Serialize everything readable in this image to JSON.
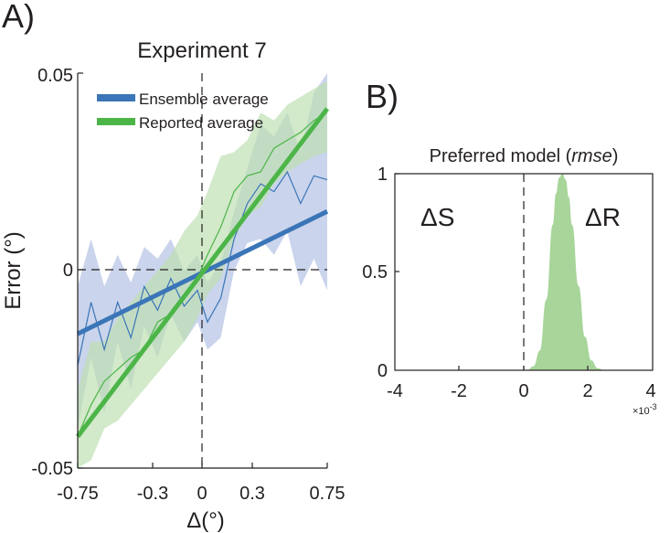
{
  "colors": {
    "ensemble": "#3a75b7",
    "ensemble_band": "#b8c6e6",
    "reported": "#4cb548",
    "reported_band": "#bfe0b4",
    "axis": "#231f20"
  },
  "panel_a": {
    "panel_label": "A)",
    "chart_data": {
      "type": "line",
      "title": "Experiment 7",
      "xlabel": "Δ(°)",
      "ylabel": "Error (°)",
      "xlim": [
        -0.75,
        0.75
      ],
      "ylim": [
        -0.05,
        0.05
      ],
      "xticks": [
        -0.75,
        -0.3,
        0,
        0.3,
        0.75
      ],
      "xtick_labels": [
        "-0.75",
        "-0.3",
        "0",
        "0.3",
        "0.75"
      ],
      "yticks": [
        -0.05,
        0,
        0.05
      ],
      "ytick_labels": [
        "-0.05",
        "0",
        "0.05"
      ],
      "legend_position": "top-left",
      "x": [
        -0.75,
        -0.67,
        -0.59,
        -0.51,
        -0.43,
        -0.35,
        -0.27,
        -0.19,
        -0.11,
        -0.03,
        0.03,
        0.11,
        0.19,
        0.27,
        0.35,
        0.43,
        0.51,
        0.59,
        0.67,
        0.75
      ],
      "series": [
        {
          "name": "Ensemble average",
          "data_line": [
            -0.024,
            -0.008,
            -0.02,
            -0.008,
            -0.017,
            -0.004,
            -0.01,
            -0.002,
            -0.009,
            -0.005,
            -0.013,
            -0.007,
            0.008,
            0.017,
            0.022,
            0.02,
            0.025,
            0.017,
            0.024,
            0.023
          ],
          "band_upper": [
            -0.004,
            0.008,
            -0.004,
            0.004,
            -0.003,
            0.006,
            0.003,
            0.008,
            0.0,
            0.004,
            -0.003,
            0.002,
            0.015,
            0.026,
            0.037,
            0.034,
            0.04,
            0.03,
            0.045,
            0.05
          ],
          "band_lower": [
            -0.04,
            -0.022,
            -0.036,
            -0.018,
            -0.03,
            -0.014,
            -0.022,
            -0.011,
            -0.018,
            -0.013,
            -0.02,
            -0.017,
            0.0,
            0.007,
            0.008,
            0.004,
            0.01,
            -0.004,
            0.003,
            -0.005
          ],
          "fit_line": {
            "x": [
              -0.75,
              0.75
            ],
            "y": [
              -0.016,
              0.015
            ]
          }
        },
        {
          "name": "Reported average",
          "data_line": [
            -0.042,
            -0.034,
            -0.028,
            -0.025,
            -0.022,
            -0.02,
            -0.013,
            -0.011,
            -0.007,
            -0.002,
            0.004,
            0.011,
            0.02,
            0.024,
            0.025,
            0.031,
            0.033,
            0.035,
            0.038,
            0.04
          ],
          "band_upper": [
            -0.03,
            -0.018,
            -0.018,
            -0.012,
            -0.008,
            -0.004,
            0.0,
            0.004,
            0.01,
            0.014,
            0.02,
            0.029,
            0.03,
            0.033,
            0.04,
            0.038,
            0.042,
            0.044,
            0.046,
            0.048
          ],
          "band_lower": [
            -0.05,
            -0.048,
            -0.04,
            -0.038,
            -0.034,
            -0.03,
            -0.026,
            -0.022,
            -0.018,
            -0.012,
            -0.006,
            -0.002,
            0.008,
            0.014,
            0.016,
            0.022,
            0.025,
            0.027,
            0.029,
            0.03
          ],
          "fit_line": {
            "x": [
              -0.75,
              0.75
            ],
            "y": [
              -0.042,
              0.041
            ]
          }
        }
      ]
    }
  },
  "panel_b": {
    "panel_label": "B)",
    "chart_data": {
      "type": "area",
      "title_prefix": "Preferred model (",
      "title_italic": "rmse",
      "title_suffix": ")",
      "xlim": [
        -4,
        4
      ],
      "ylim": [
        0,
        1
      ],
      "xticks": [
        -4,
        -2,
        0,
        2,
        4
      ],
      "xtick_labels": [
        "-4",
        "-2",
        "0",
        "2",
        "4"
      ],
      "yticks": [
        0,
        0.5,
        1
      ],
      "ytick_labels": [
        "0",
        "0.5",
        "1"
      ],
      "x_scale_note": "×10",
      "x_scale_exp": "-3",
      "region_labels": [
        "ΔS",
        "ΔR"
      ],
      "x": [
        0.1,
        0.3,
        0.5,
        0.7,
        0.9,
        1.0,
        1.1,
        1.2,
        1.3,
        1.4,
        1.5,
        1.7,
        1.9,
        2.1,
        2.3,
        2.5
      ],
      "values": [
        0.0,
        0.02,
        0.1,
        0.36,
        0.74,
        0.9,
        0.98,
        1.0,
        0.97,
        0.88,
        0.74,
        0.43,
        0.17,
        0.05,
        0.01,
        0.0
      ]
    }
  }
}
